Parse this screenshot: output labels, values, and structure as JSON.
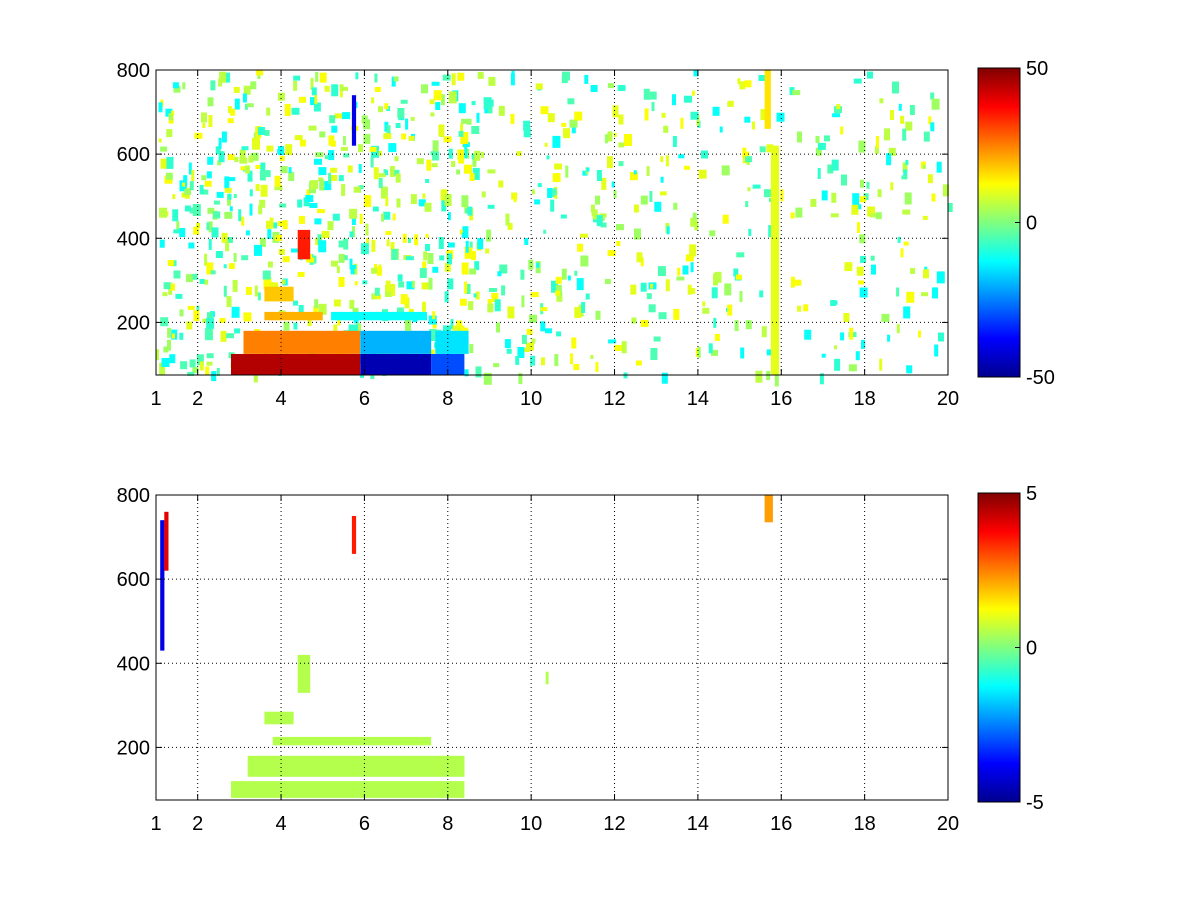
{
  "chart_data": [
    {
      "type": "heatmap",
      "xlim": [
        1,
        20
      ],
      "ylim": [
        75,
        800
      ],
      "x_ticks": [
        1,
        2,
        4,
        6,
        8,
        10,
        12,
        14,
        16,
        18,
        20
      ],
      "y_ticks": [
        200,
        400,
        600,
        800
      ],
      "grid": true,
      "colormap": "jet",
      "clim": [
        -50,
        50
      ],
      "colorbar": {
        "ticks": [
          50,
          0,
          -50
        ],
        "placement": "right"
      },
      "features": [
        {
          "x": [
            2.8,
            5.9
          ],
          "y": [
            75,
            125
          ],
          "value": 45
        },
        {
          "x": [
            5.9,
            7.6
          ],
          "y": [
            75,
            125
          ],
          "value": -45
        },
        {
          "x": [
            7.6,
            8.4
          ],
          "y": [
            75,
            125
          ],
          "value": -30
        },
        {
          "x": [
            3.1,
            5.9
          ],
          "y": [
            125,
            180
          ],
          "value": 25
        },
        {
          "x": [
            5.9,
            7.6
          ],
          "y": [
            125,
            180
          ],
          "value": -20
        },
        {
          "x": [
            7.7,
            8.5
          ],
          "y": [
            125,
            180
          ],
          "value": -15
        },
        {
          "x": [
            3.6,
            5.0
          ],
          "y": [
            205,
            225
          ],
          "value": 20
        },
        {
          "x": [
            5.2,
            7.5
          ],
          "y": [
            205,
            225
          ],
          "value": -12
        },
        {
          "x": [
            3.6,
            4.3
          ],
          "y": [
            250,
            285
          ],
          "value": 18
        },
        {
          "x": [
            4.4,
            4.7
          ],
          "y": [
            350,
            420
          ],
          "value": 35
        },
        {
          "x": [
            5.7,
            5.8
          ],
          "y": [
            620,
            740
          ],
          "value": -40
        },
        {
          "x": [
            15.6,
            15.75
          ],
          "y": [
            660,
            800
          ],
          "value": 15
        },
        {
          "x": [
            15.75,
            15.95
          ],
          "y": [
            75,
            620
          ],
          "value": 10
        }
      ]
    },
    {
      "type": "heatmap",
      "xlim": [
        1,
        20
      ],
      "ylim": [
        75,
        800
      ],
      "x_ticks": [
        1,
        2,
        4,
        6,
        8,
        10,
        12,
        14,
        16,
        18,
        20
      ],
      "y_ticks": [
        200,
        400,
        600,
        800
      ],
      "grid": true,
      "colormap": "jet",
      "clim": [
        -5,
        5
      ],
      "colorbar": {
        "ticks": [
          5,
          0,
          -5
        ],
        "placement": "right"
      },
      "features": [
        {
          "x": [
            2.8,
            8.4
          ],
          "y": [
            80,
            120
          ],
          "value": 0.5
        },
        {
          "x": [
            3.2,
            8.4
          ],
          "y": [
            130,
            180
          ],
          "value": 0.5
        },
        {
          "x": [
            3.8,
            7.6
          ],
          "y": [
            205,
            225
          ],
          "value": 0.5
        },
        {
          "x": [
            3.6,
            4.3
          ],
          "y": [
            255,
            285
          ],
          "value": 0.5
        },
        {
          "x": [
            4.4,
            4.7
          ],
          "y": [
            330,
            420
          ],
          "value": 0.5
        },
        {
          "x": [
            15.6,
            15.8
          ],
          "y": [
            735,
            800
          ],
          "value": 2.2
        },
        {
          "x": [
            5.7,
            5.8
          ],
          "y": [
            660,
            750
          ],
          "value": 3.5
        },
        {
          "x": [
            1.1,
            1.2
          ],
          "y": [
            430,
            740
          ],
          "value": -4
        },
        {
          "x": [
            1.2,
            1.3
          ],
          "y": [
            620,
            760
          ],
          "value": 4
        },
        {
          "x": [
            10.35,
            10.42
          ],
          "y": [
            350,
            380
          ],
          "value": 0.5
        }
      ]
    }
  ]
}
